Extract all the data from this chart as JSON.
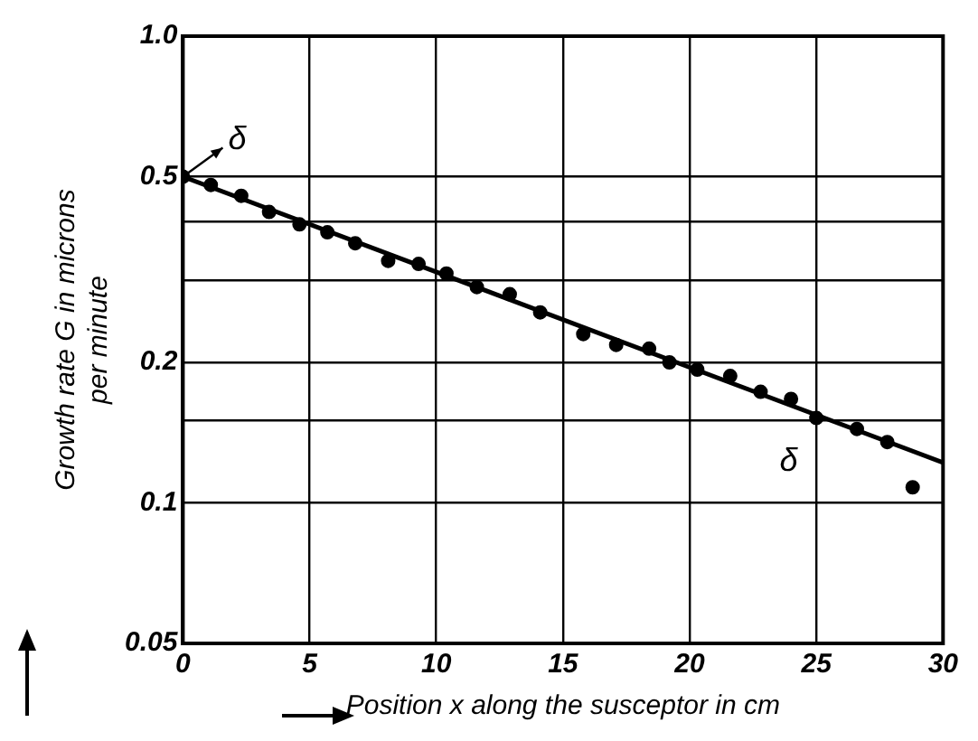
{
  "chart_data": {
    "type": "scatter",
    "xlabel": "Position x along the susceptor in cm",
    "ylabel": "Growth rate G in microns per minute",
    "series": [
      {
        "marker": "circle",
        "color": "#000000",
        "x": [
          0,
          1.1,
          2.3,
          3.4,
          4.6,
          5.7,
          6.8,
          8.1,
          9.3,
          10.4,
          11.6,
          12.9,
          14.1,
          15.8,
          17.1,
          18.4,
          19.2,
          20.3,
          21.6,
          22.8,
          24.0,
          25.0,
          26.6,
          27.8,
          28.8
        ],
        "values": [
          0.5,
          0.48,
          0.455,
          0.42,
          0.395,
          0.38,
          0.36,
          0.33,
          0.325,
          0.31,
          0.29,
          0.28,
          0.256,
          0.23,
          0.218,
          0.214,
          0.2,
          0.193,
          0.187,
          0.173,
          0.167,
          0.152,
          0.144,
          0.135,
          0.108
        ]
      },
      {
        "type": "line",
        "marker": "none",
        "color": "#000000",
        "x": [
          0,
          30
        ],
        "values": [
          0.5,
          0.122
        ]
      }
    ],
    "xlim": [
      0,
      30
    ],
    "xticks": [
      0,
      5,
      10,
      15,
      20,
      25,
      30
    ],
    "ylim": [
      0.05,
      1
    ],
    "yticks": [
      0.05,
      0.1,
      {
        "value": 0.15,
        "label": null
      },
      0.2,
      {
        "value": 0.3,
        "label": null
      },
      {
        "value": 0.4,
        "label": null
      },
      0.5,
      {
        "value": 1,
        "label": "1.0"
      }
    ],
    "log": "y",
    "grid": true,
    "legend": false,
    "annotations": [
      "δ",
      "δ"
    ]
  }
}
